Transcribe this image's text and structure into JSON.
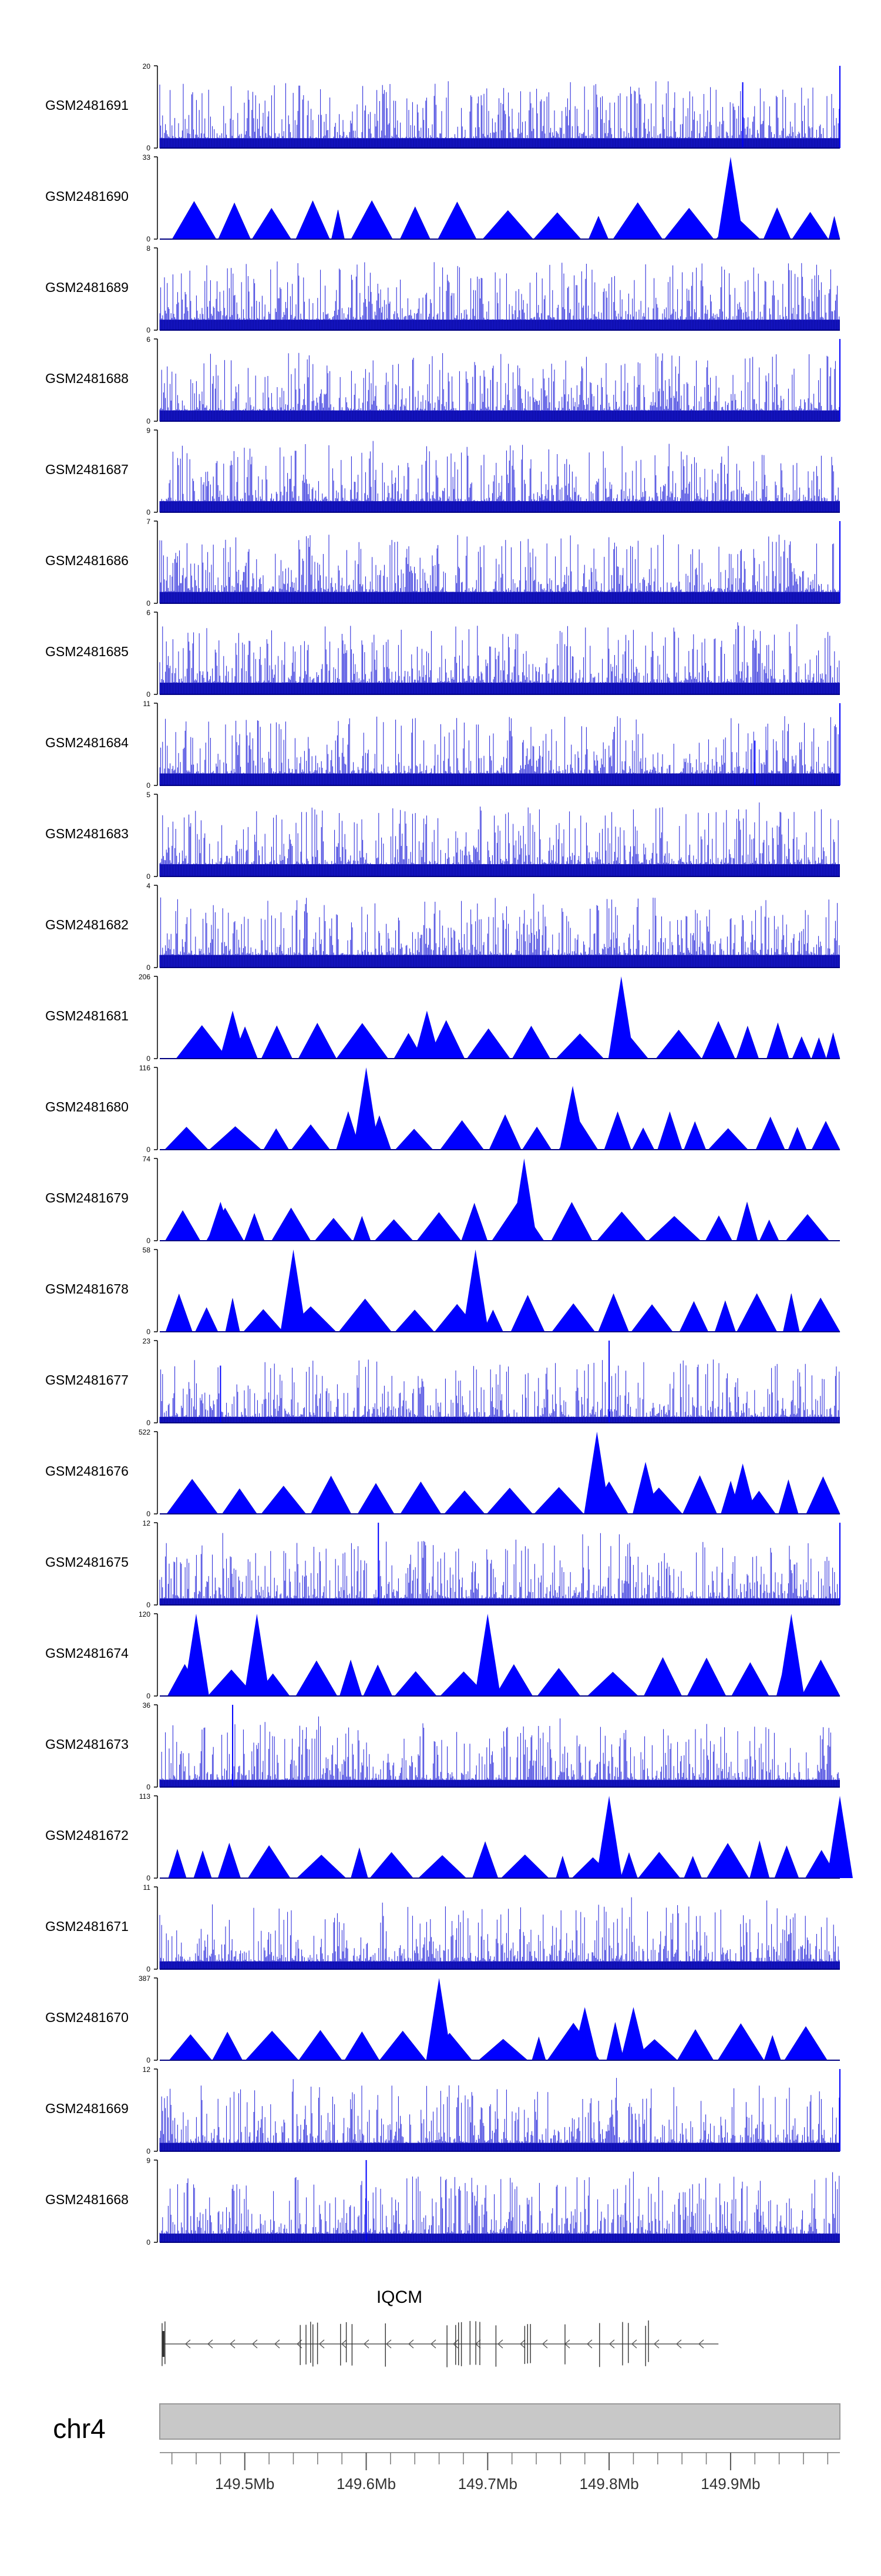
{
  "chart_data": {
    "type": "area",
    "title": "",
    "xlabel": "",
    "ylabel": "",
    "chromosome": "chr4",
    "gene": "IQCM",
    "x_range_mb": [
      149.43,
      149.99
    ],
    "x_ticks_mb": [
      149.5,
      149.6,
      149.7,
      149.8,
      149.9
    ],
    "x_tick_labels": [
      "149.5Mb",
      "149.6Mb",
      "149.7Mb",
      "149.8Mb",
      "149.9Mb"
    ],
    "gene_span_mb": [
      149.43,
      149.89
    ],
    "tracks": [
      {
        "name": "GSM2481691",
        "ymax": 20,
        "ylim": [
          0,
          20
        ],
        "style": "dense",
        "peaks": [
          [
            149.91,
            16
          ],
          [
            149.99,
            20
          ]
        ]
      },
      {
        "name": "GSM2481690",
        "ymax": 33,
        "ylim": [
          0,
          33
        ],
        "style": "triangles",
        "peaks": [
          [
            149.9,
            33
          ]
        ]
      },
      {
        "name": "GSM2481689",
        "ymax": 8,
        "ylim": [
          0,
          8
        ],
        "style": "dense",
        "peaks": []
      },
      {
        "name": "GSM2481688",
        "ymax": 6,
        "ylim": [
          0,
          6
        ],
        "style": "dense",
        "peaks": [
          [
            149.99,
            6
          ]
        ]
      },
      {
        "name": "GSM2481687",
        "ymax": 9,
        "ylim": [
          0,
          9
        ],
        "style": "dense",
        "peaks": []
      },
      {
        "name": "GSM2481686",
        "ymax": 7,
        "ylim": [
          0,
          7
        ],
        "style": "dense",
        "peaks": [
          [
            149.99,
            7
          ]
        ]
      },
      {
        "name": "GSM2481685",
        "ymax": 6,
        "ylim": [
          0,
          6
        ],
        "style": "dense",
        "peaks": []
      },
      {
        "name": "GSM2481684",
        "ymax": 11,
        "ylim": [
          0,
          11
        ],
        "style": "dense",
        "peaks": [
          [
            149.92,
            6
          ],
          [
            149.99,
            11
          ]
        ]
      },
      {
        "name": "GSM2481683",
        "ymax": 5,
        "ylim": [
          0,
          5
        ],
        "style": "dense",
        "peaks": []
      },
      {
        "name": "GSM2481682",
        "ymax": 4,
        "ylim": [
          0,
          4
        ],
        "style": "dense",
        "peaks": []
      },
      {
        "name": "GSM2481681",
        "ymax": 206,
        "ylim": [
          0,
          206
        ],
        "style": "triangles",
        "peaks": [
          [
            149.49,
            120
          ],
          [
            149.65,
            120
          ],
          [
            149.81,
            206
          ]
        ]
      },
      {
        "name": "GSM2481680",
        "ymax": 116,
        "ylim": [
          0,
          116
        ],
        "style": "triangles",
        "peaks": [
          [
            149.6,
            116
          ],
          [
            149.77,
            90
          ]
        ]
      },
      {
        "name": "GSM2481679",
        "ymax": 74,
        "ylim": [
          0,
          74
        ],
        "style": "triangles",
        "peaks": [
          [
            149.48,
            35
          ],
          [
            149.73,
            74
          ]
        ]
      },
      {
        "name": "GSM2481678",
        "ymax": 58,
        "ylim": [
          0,
          58
        ],
        "style": "triangles",
        "peaks": [
          [
            149.54,
            58
          ],
          [
            149.69,
            58
          ]
        ]
      },
      {
        "name": "GSM2481677",
        "ymax": 23,
        "ylim": [
          0,
          23
        ],
        "style": "dense",
        "peaks": [
          [
            149.8,
            23
          ],
          [
            149.48,
            16
          ]
        ]
      },
      {
        "name": "GSM2481676",
        "ymax": 522,
        "ylim": [
          0,
          522
        ],
        "style": "triangles",
        "peaks": [
          [
            149.79,
            522
          ],
          [
            149.83,
            330
          ],
          [
            149.91,
            320
          ]
        ]
      },
      {
        "name": "GSM2481675",
        "ymax": 12,
        "ylim": [
          0,
          12
        ],
        "style": "dense",
        "peaks": [
          [
            149.61,
            12
          ],
          [
            149.99,
            12
          ]
        ]
      },
      {
        "name": "GSM2481674",
        "ymax": 120,
        "ylim": [
          0,
          120
        ],
        "style": "triangles",
        "peaks": [
          [
            149.46,
            120
          ],
          [
            149.51,
            120
          ],
          [
            149.7,
            120
          ],
          [
            149.95,
            120
          ]
        ]
      },
      {
        "name": "GSM2481673",
        "ymax": 36,
        "ylim": [
          0,
          36
        ],
        "style": "dense",
        "peaks": [
          [
            149.49,
            36
          ]
        ]
      },
      {
        "name": "GSM2481672",
        "ymax": 113,
        "ylim": [
          0,
          113
        ],
        "style": "triangles",
        "peaks": [
          [
            149.8,
            113
          ],
          [
            149.99,
            113
          ]
        ]
      },
      {
        "name": "GSM2481671",
        "ymax": 11,
        "ylim": [
          0,
          11
        ],
        "style": "dense",
        "peaks": []
      },
      {
        "name": "GSM2481670",
        "ymax": 387,
        "ylim": [
          0,
          387
        ],
        "style": "triangles",
        "peaks": [
          [
            149.66,
            387
          ],
          [
            149.78,
            250
          ],
          [
            149.82,
            250
          ]
        ]
      },
      {
        "name": "GSM2481669",
        "ymax": 12,
        "ylim": [
          0,
          12
        ],
        "style": "dense",
        "peaks": [
          [
            149.99,
            12
          ]
        ]
      },
      {
        "name": "GSM2481668",
        "ymax": 9,
        "ylim": [
          0,
          9
        ],
        "style": "dense",
        "peaks": [
          [
            149.6,
            9
          ]
        ]
      }
    ],
    "colors": {
      "fill": "#0000ff",
      "dark": "#000080",
      "axis": "#000000",
      "chrom": "#c8c8c8"
    }
  }
}
